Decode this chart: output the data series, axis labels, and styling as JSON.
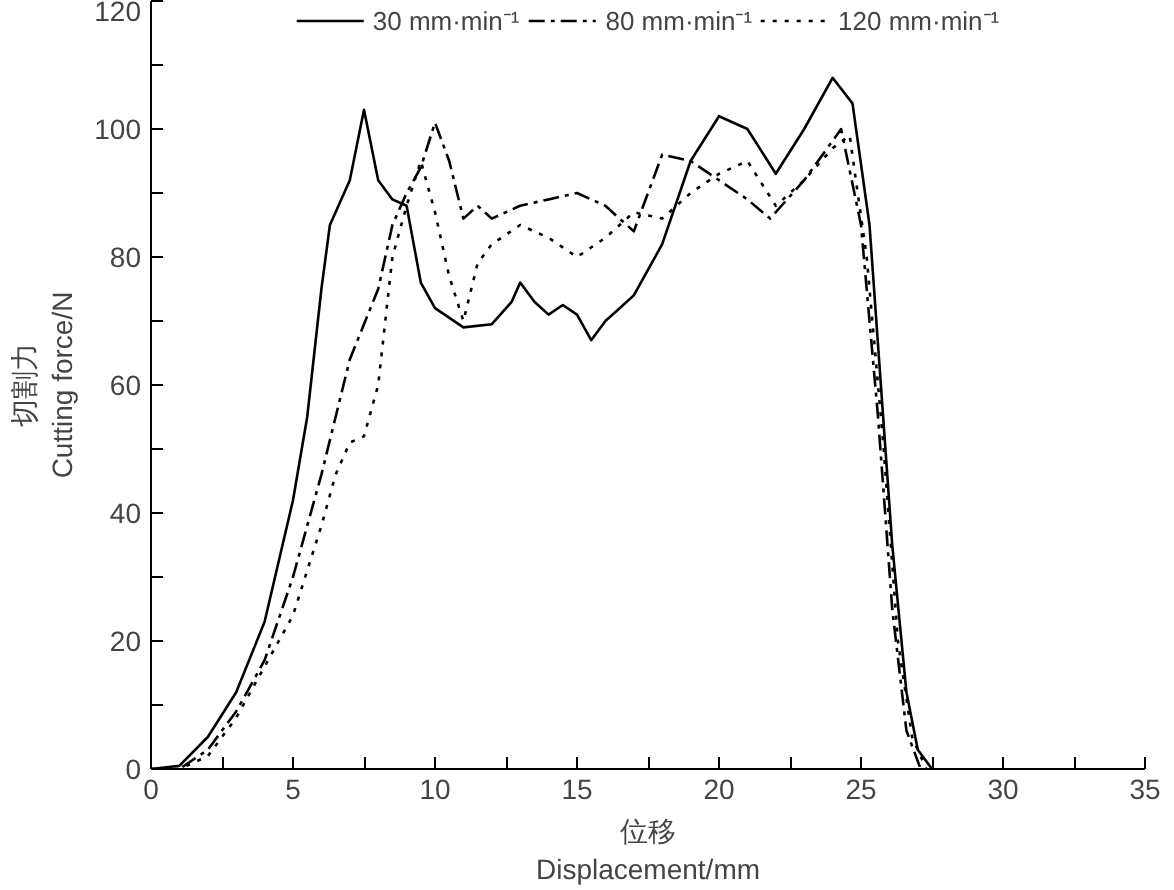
{
  "chart_data": {
    "type": "line",
    "xlabel": "位移\nDisplacement/mm",
    "ylabel": "切割力\nCutting force/N",
    "xlim": [
      0,
      35
    ],
    "ylim": [
      0,
      120
    ],
    "xticks": [
      0,
      {
        "value": 2.5,
        "label": null
      },
      5,
      {
        "value": 7.5,
        "label": null
      },
      10,
      {
        "value": 12.5,
        "label": null
      },
      15,
      {
        "value": 17.5,
        "label": null
      },
      20,
      {
        "value": 22.5,
        "label": null
      },
      25,
      {
        "value": 27.5,
        "label": null
      },
      30,
      {
        "value": 32.5,
        "label": null
      },
      35
    ],
    "yticks": [
      0,
      {
        "value": 10,
        "label": null
      },
      20,
      {
        "value": 30,
        "label": null
      },
      40,
      {
        "value": 50,
        "label": null
      },
      60,
      {
        "value": 70,
        "label": null
      },
      80,
      {
        "value": 90,
        "label": null
      },
      100,
      {
        "value": 110,
        "label": null
      },
      120
    ],
    "grid": false,
    "legend": "top",
    "marker": "none",
    "series": [
      {
        "name": "30 mm·min⁻¹",
        "color": "#000000",
        "line_style": "solid",
        "x": [
          0,
          1,
          2,
          3,
          4,
          5,
          5.5,
          6,
          6.3,
          7,
          7.5,
          8,
          8.5,
          9,
          9.5,
          10,
          11,
          12,
          12.7,
          13,
          13.5,
          14,
          14.5,
          15,
          15.5,
          16,
          16.5,
          17,
          18,
          19,
          20,
          21,
          22,
          23,
          24,
          24.7,
          25.3,
          25.7,
          26.1,
          26.6,
          27,
          27.5
        ],
        "values": [
          0,
          0.5,
          5,
          12,
          23,
          42,
          55,
          75,
          85,
          92,
          103,
          92,
          89,
          88,
          76,
          72,
          69,
          69.5,
          73,
          76,
          73,
          71,
          72.5,
          71,
          67,
          70,
          72,
          74,
          82,
          95,
          102,
          100,
          93,
          100,
          108,
          104,
          85,
          60,
          35,
          12,
          3,
          0
        ]
      },
      {
        "name": "80 mm·min⁻¹",
        "color": "#000000",
        "line_style": "dashdot",
        "x": [
          0,
          1,
          2,
          3,
          4,
          5,
          6,
          7,
          8,
          8.5,
          9,
          9.5,
          10,
          10.5,
          11,
          11.5,
          12,
          13,
          14,
          15,
          16,
          17,
          17.5,
          18,
          19,
          20,
          21,
          21.8,
          23,
          24.3,
          25,
          25.6,
          26.1,
          26.6,
          27.1
        ],
        "values": [
          0,
          0,
          3,
          9,
          17,
          30,
          46,
          64,
          75,
          85,
          90,
          94,
          101,
          95,
          86,
          88,
          86,
          88,
          89,
          90,
          88,
          84,
          90,
          96,
          95,
          92,
          89,
          86,
          92,
          100,
          85,
          55,
          25,
          6,
          0
        ]
      },
      {
        "name": "120 mm·min⁻¹",
        "color": "#000000",
        "line_style": "dotted",
        "x": [
          0,
          1,
          2,
          3,
          4,
          5,
          6,
          6.5,
          7,
          7.5,
          8,
          8.5,
          9,
          9.5,
          10,
          10.5,
          11,
          11.5,
          12,
          13,
          14,
          15,
          16,
          17,
          18,
          19,
          20,
          21,
          22,
          23,
          24,
          24.6,
          25.2,
          25.8,
          26.3,
          26.8,
          27.3
        ],
        "values": [
          0,
          0,
          2,
          8,
          16,
          24,
          38,
          46,
          51,
          52,
          60,
          80,
          88,
          95,
          87,
          77,
          70,
          79,
          82,
          85,
          83,
          80,
          83,
          87,
          86,
          90,
          93,
          95,
          88,
          92,
          97,
          99,
          80,
          50,
          20,
          5,
          0
        ]
      }
    ]
  }
}
